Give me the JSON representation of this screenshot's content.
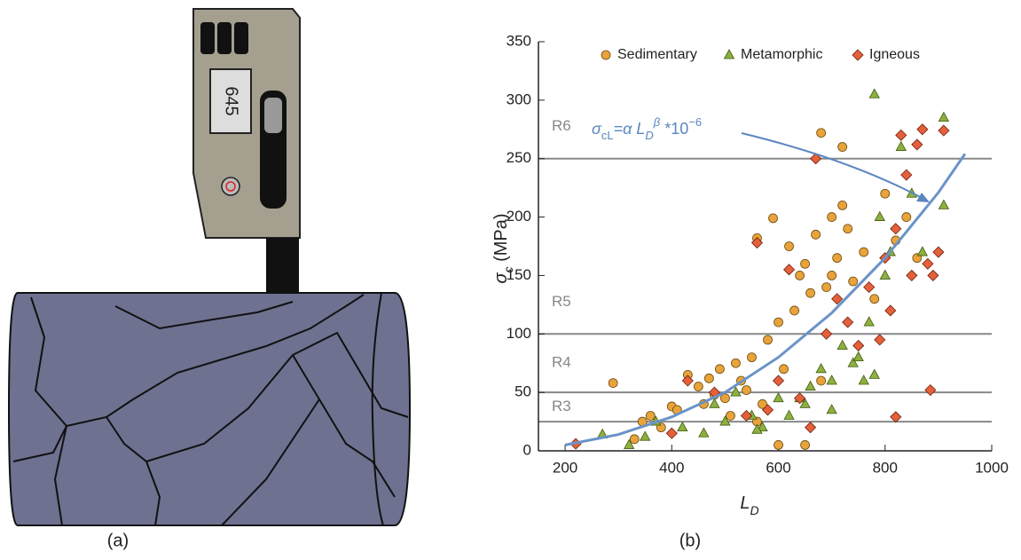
{
  "illustration": {
    "display": "645",
    "caption": "(a)"
  },
  "chart_data": {
    "type": "scatter",
    "caption": "(b)",
    "x_label": [
      "L",
      "D"
    ],
    "y_label": [
      "σ",
      "c",
      " (MPa)"
    ],
    "xlim": [
      150,
      1000
    ],
    "xticks": [
      200,
      400,
      600,
      800,
      1000
    ],
    "ylim": [
      0,
      350
    ],
    "yticks": [
      0,
      50,
      100,
      150,
      200,
      250,
      300,
      350
    ],
    "legend": "top",
    "series": [
      {
        "name": "Sedimentary",
        "color": "#e8a33a",
        "marker": "circle",
        "x": [
          290,
          330,
          345,
          360,
          380,
          400,
          410,
          430,
          450,
          460,
          470,
          480,
          490,
          500,
          510,
          520,
          530,
          540,
          550,
          560,
          570,
          580,
          590,
          600,
          610,
          620,
          630,
          640,
          650,
          660,
          670,
          680,
          690,
          700,
          710,
          720,
          730,
          740,
          760,
          780,
          800,
          820,
          840,
          860,
          560,
          600,
          650,
          700,
          680,
          720
        ],
        "y": [
          58,
          10,
          25,
          30,
          20,
          38,
          35,
          65,
          55,
          40,
          62,
          48,
          70,
          45,
          30,
          75,
          60,
          52,
          80,
          182,
          40,
          95,
          199,
          110,
          70,
          175,
          120,
          150,
          160,
          135,
          185,
          272,
          140,
          200,
          165,
          260,
          190,
          145,
          170,
          130,
          220,
          180,
          200,
          165,
          25,
          5,
          5,
          150,
          60,
          210
        ]
      },
      {
        "name": "Metamorphic",
        "color": "#8db03f",
        "marker": "triangle",
        "x": [
          270,
          320,
          350,
          370,
          420,
          460,
          480,
          500,
          520,
          550,
          570,
          600,
          620,
          650,
          660,
          680,
          700,
          720,
          740,
          750,
          760,
          770,
          780,
          790,
          800,
          810,
          830,
          850,
          870,
          910,
          910,
          780,
          640,
          700,
          560
        ],
        "y": [
          14,
          5,
          12,
          25,
          20,
          15,
          40,
          25,
          50,
          30,
          20,
          45,
          30,
          40,
          55,
          70,
          60,
          90,
          75,
          80,
          60,
          110,
          305,
          200,
          150,
          170,
          260,
          220,
          170,
          285,
          210,
          65,
          45,
          35,
          18
        ]
      },
      {
        "name": "Igneous",
        "color": "#e5603a",
        "marker": "diamond",
        "x": [
          220,
          400,
          430,
          480,
          540,
          560,
          580,
          600,
          620,
          640,
          660,
          670,
          690,
          710,
          730,
          750,
          770,
          790,
          800,
          810,
          820,
          830,
          840,
          850,
          860,
          870,
          880,
          890,
          900,
          910,
          820,
          885
        ],
        "y": [
          6,
          15,
          60,
          50,
          30,
          178,
          35,
          60,
          155,
          45,
          20,
          250,
          100,
          130,
          110,
          90,
          140,
          95,
          165,
          120,
          190,
          270,
          236,
          150,
          262,
          275,
          160,
          150,
          170,
          274,
          29,
          52
        ]
      }
    ],
    "fit_curve": {
      "color": "#6a93c8",
      "label": [
        "σ",
        "cL",
        "=α L",
        "D",
        "β",
        " *10",
        "−6"
      ],
      "x": [
        200,
        300,
        400,
        500,
        600,
        700,
        800,
        900,
        950
      ],
      "y": [
        5,
        14,
        29,
        50,
        80,
        118,
        165,
        221,
        254
      ]
    },
    "class_lines": {
      "values": [
        25,
        50,
        100,
        250
      ],
      "labels": [
        "R3",
        "R4",
        "R5",
        "R6"
      ]
    }
  }
}
